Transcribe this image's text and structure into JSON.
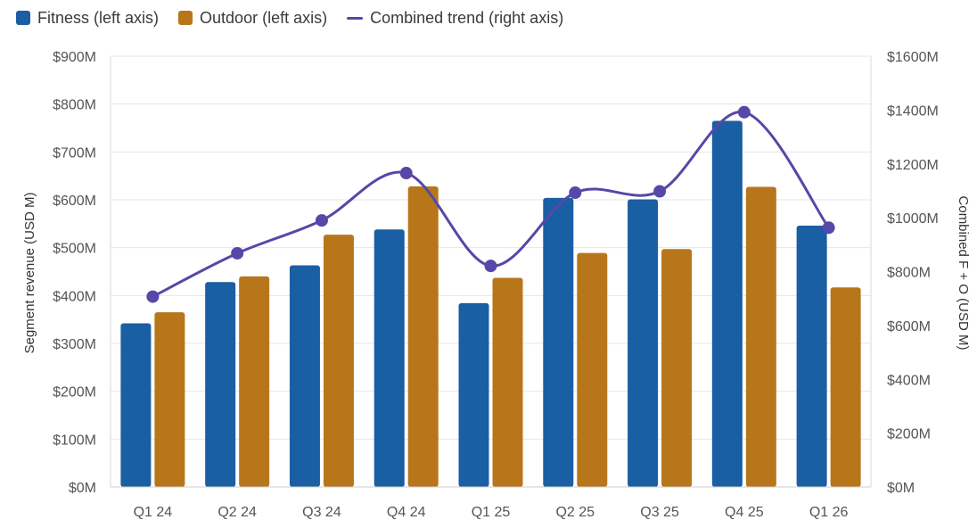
{
  "chart_data": {
    "type": "bar",
    "title": "",
    "categories": [
      "Q1 24",
      "Q2 24",
      "Q3 24",
      "Q4 24",
      "Q1 25",
      "Q2 25",
      "Q3 25",
      "Q4 25",
      "Q1 26"
    ],
    "series": [
      {
        "name": "Fitness (left axis)",
        "type": "bar",
        "axis": "left",
        "color": "#1a5ea3",
        "values": [
          342,
          428,
          463,
          538,
          384,
          604,
          601,
          765,
          546
        ]
      },
      {
        "name": "Outdoor (left axis)",
        "type": "bar",
        "axis": "left",
        "color": "#b8761a",
        "values": [
          365,
          440,
          527,
          628,
          437,
          489,
          497,
          627,
          417
        ]
      },
      {
        "name": "Combined trend (right axis)",
        "type": "line",
        "axis": "right",
        "smooth": true,
        "color": "#5548a8",
        "values": [
          707,
          868,
          990,
          1166,
          821,
          1093,
          1098,
          1392,
          963
        ]
      }
    ],
    "ylabel": "Segment revenue (USD M)",
    "ylim": [
      0,
      900
    ],
    "yticks": [
      "$0M",
      "$100M",
      "$200M",
      "$300M",
      "$400M",
      "$500M",
      "$600M",
      "$700M",
      "$800M",
      "$900M"
    ],
    "ylabel_right": "Combined F + O (USD M)",
    "ylim_right": [
      0,
      1600
    ],
    "yticks_right": [
      "$0M",
      "$200M",
      "$400M",
      "$600M",
      "$800M",
      "$1000M",
      "$1200M",
      "$1400M",
      "$1600M"
    ],
    "grid": true,
    "legend_position": "top-left"
  }
}
